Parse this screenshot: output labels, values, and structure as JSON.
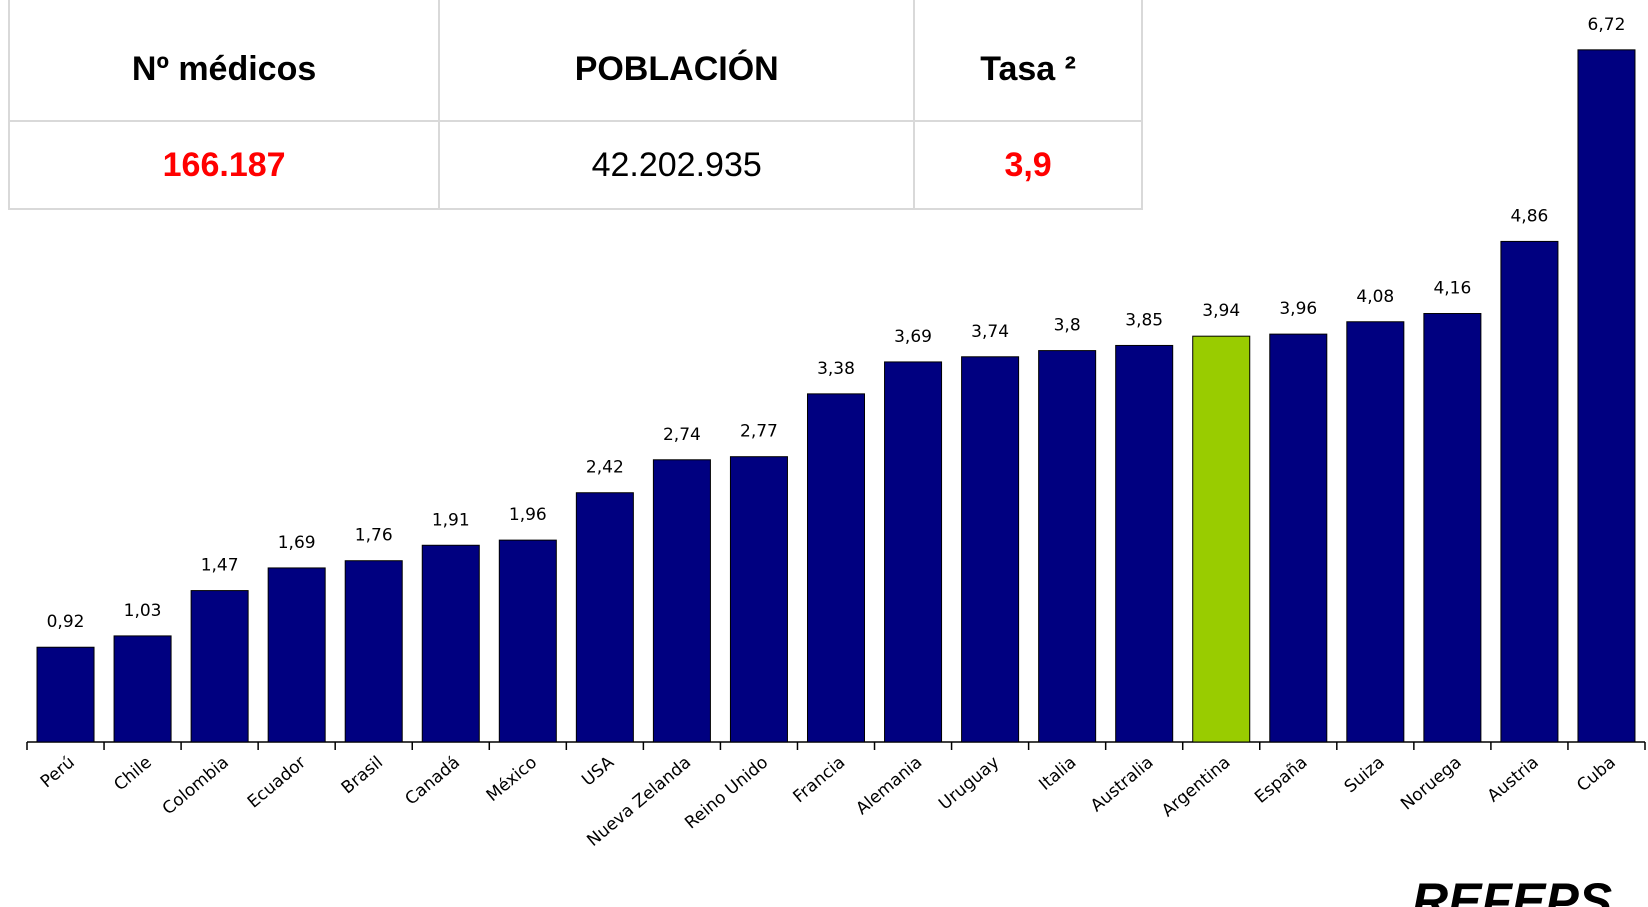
{
  "table": {
    "header": [
      "Nº médicos",
      "POBLACIÓN",
      "Tasa ²"
    ],
    "rows": [
      [
        "166.187",
        "42.202.935",
        "3,9"
      ]
    ]
  },
  "chart_data": {
    "type": "bar",
    "categories": [
      "Perú",
      "Chile",
      "Colombia",
      "Ecuador",
      "Brasil",
      "Canadá",
      "México",
      "USA",
      "Nueva Zelanda",
      "Reino Unido",
      "Francia",
      "Alemania",
      "Uruguay",
      "Italia",
      "Australia",
      "Argentina",
      "España",
      "Suiza",
      "Noruega",
      "Austria",
      "Cuba"
    ],
    "values": [
      0.92,
      1.03,
      1.47,
      1.69,
      1.76,
      1.91,
      1.96,
      2.42,
      2.74,
      2.77,
      3.38,
      3.69,
      3.74,
      3.8,
      3.85,
      3.94,
      3.96,
      4.08,
      4.16,
      4.86,
      6.72
    ],
    "value_labels": [
      "0,92",
      "1,03",
      "1,47",
      "1,69",
      "1,76",
      "1,91",
      "1,96",
      "2,42",
      "2,74",
      "2,77",
      "3,38",
      "3,69",
      "3,74",
      "3,8",
      "3,85",
      "3,94",
      "3,96",
      "4,08",
      "4,16",
      "4,86",
      "6,72"
    ],
    "colors": [
      "#000080",
      "#000080",
      "#000080",
      "#000080",
      "#000080",
      "#000080",
      "#000080",
      "#000080",
      "#000080",
      "#000080",
      "#000080",
      "#000080",
      "#000080",
      "#000080",
      "#000080",
      "#99cc00",
      "#000080",
      "#000080",
      "#000080",
      "#000080",
      "#000080"
    ],
    "ylim": [
      0,
      7
    ]
  },
  "footer": "REFEPS"
}
